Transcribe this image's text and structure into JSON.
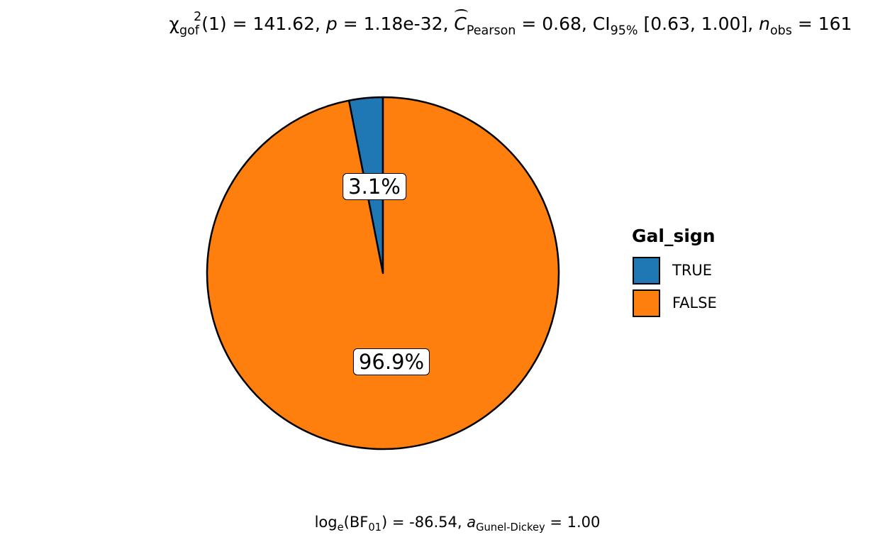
{
  "chart_data": {
    "type": "pie",
    "title_parts": {
      "chi": "χ",
      "chi_sub": "gof",
      "chi_sup": "2",
      "df": "(1)",
      "stat": " = 141.62, ",
      "p": "p",
      "p_val": " = 1.18e-32, ",
      "c": "C",
      "c_sub": "Pearson",
      "c_val": " = 0.68, CI",
      "ci_sub": "95%",
      "ci_val": " [0.63, 1.00], ",
      "n": "n",
      "n_sub": "obs",
      "n_val": " = 161"
    },
    "subtitle_parts": {
      "log": "log",
      "log_sub": "e",
      "bf_open": "(BF",
      "bf_sub": "01",
      "bf_val": ") = -86.54, ",
      "a": "a",
      "a_sub": "Gunel-Dickey",
      "a_val": " = 1.00"
    },
    "legend": {
      "title": "Gal_sign",
      "placement": "right"
    },
    "slices": [
      {
        "label": "TRUE",
        "percent": 3.1,
        "percent_label": "3.1%",
        "color": "#1f77b4"
      },
      {
        "label": "FALSE",
        "percent": 96.9,
        "percent_label": "96.9%",
        "color": "#ff7f0e"
      }
    ]
  }
}
